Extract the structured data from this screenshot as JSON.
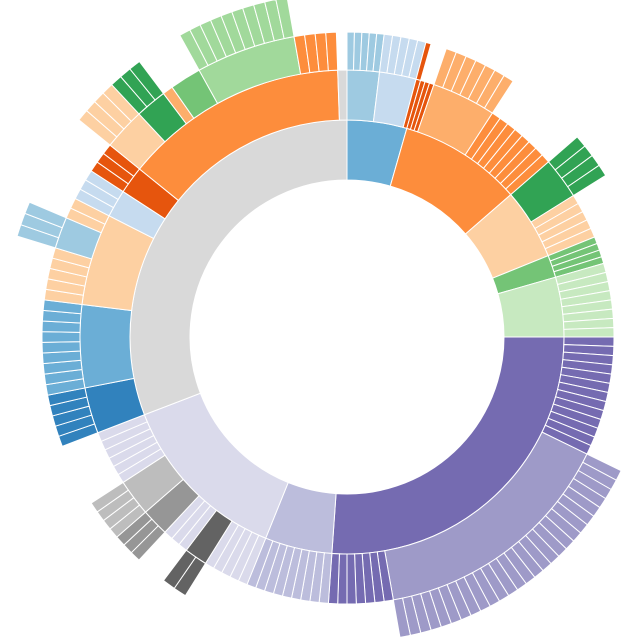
{
  "chart_data": {
    "type": "sunburst",
    "children": [
      {
        "color": "#6baed6",
        "children": [
          {
            "color": "#9ecae1",
            "children": [
              {
                "color": "#9ecae1",
                "value": 1.4
              },
              {
                "color": "#9ecae1",
                "value": 1.4
              },
              {
                "color": "#9ecae1",
                "value": 1.4
              },
              {
                "color": "#9ecae1",
                "value": 1.4
              },
              {
                "color": "#9ecae1",
                "value": 1.4
              }
            ]
          },
          {
            "color": "#c6dbef",
            "children": [
              {
                "color": "#c6dbef",
                "value": 1.6
              },
              {
                "color": "#c6dbef",
                "value": 1.6
              },
              {
                "color": "#c6dbef",
                "value": 1.6
              },
              {
                "color": "#c6dbef",
                "value": 1.6
              },
              {
                "color": "#c6dbef",
                "value": 1.6
              }
            ]
          },
          {
            "color": "#e6550d",
            "children": [
              {
                "color": "#e6550d",
                "value": 1
              }
            ]
          }
        ]
      },
      {
        "color": "#fd8d3c",
        "children": [
          {
            "color": "#e6550d",
            "value": 1
          },
          {
            "color": "#e6550d",
            "value": 1
          },
          {
            "color": "#e6550d",
            "value": 1
          },
          {
            "color": "#fdae6b",
            "children": [
              {
                "color": "#fdae6b",
                "value": 2
              },
              {
                "color": "#fdae6b",
                "value": 2
              },
              {
                "color": "#fdae6b",
                "value": 2
              },
              {
                "color": "#fdae6b",
                "value": 2
              },
              {
                "color": "#fdae6b",
                "value": 2
              },
              {
                "color": "#fdae6b",
                "value": 2
              },
              {
                "color": "#fdae6b",
                "value": 2
              }
            ]
          },
          {
            "color": "#fd8d3c",
            "value": 2
          },
          {
            "color": "#fd8d3c",
            "value": 2
          },
          {
            "color": "#fd8d3c",
            "value": 2
          },
          {
            "color": "#fd8d3c",
            "value": 2
          },
          {
            "color": "#fd8d3c",
            "value": 2
          },
          {
            "color": "#fd8d3c",
            "value": 2
          },
          {
            "color": "#fd8d3c",
            "value": 2
          },
          {
            "color": "#fd8d3c",
            "value": 2
          }
        ]
      },
      {
        "color": "#fdd0a2",
        "children": [
          {
            "color": "#31a354",
            "children": [
              {
                "color": "#31a354",
                "value": 2.25
              },
              {
                "color": "#31a354",
                "value": 2.25
              },
              {
                "color": "#31a354",
                "value": 2.25
              },
              {
                "color": "#31a354",
                "value": 2.25
              }
            ]
          },
          {
            "color": "#fdd0a2",
            "value": 2
          },
          {
            "color": "#fdd0a2",
            "value": 2
          },
          {
            "color": "#fdd0a2",
            "value": 2
          },
          {
            "color": "#fdd0a2",
            "value": 2
          },
          {
            "color": "#fdd0a2",
            "value": 2
          }
        ]
      },
      {
        "color": "#74c476",
        "children": [
          {
            "color": "#74c476",
            "value": 1.5
          },
          {
            "color": "#74c476",
            "value": 1.5
          },
          {
            "color": "#74c476",
            "value": 1.5
          },
          {
            "color": "#74c476",
            "value": 1.5
          }
        ]
      },
      {
        "color": "#c7e9c0",
        "children": [
          {
            "color": "#c7e9c0",
            "value": 2
          },
          {
            "color": "#c7e9c0",
            "value": 2
          },
          {
            "color": "#c7e9c0",
            "value": 2
          },
          {
            "color": "#c7e9c0",
            "value": 2
          },
          {
            "color": "#c7e9c0",
            "value": 2
          },
          {
            "color": "#c7e9c0",
            "value": 2
          },
          {
            "color": "#c7e9c0",
            "value": 2
          },
          {
            "color": "#c7e9c0",
            "value": 2
          }
        ]
      },
      {
        "color": "#756bb1",
        "children": [
          {
            "color": "#756bb1",
            "value": 2
          },
          {
            "color": "#756bb1",
            "value": 2
          },
          {
            "color": "#756bb1",
            "value": 2
          },
          {
            "color": "#756bb1",
            "value": 2
          },
          {
            "color": "#756bb1",
            "value": 2
          },
          {
            "color": "#756bb1",
            "value": 2
          },
          {
            "color": "#756bb1",
            "value": 2
          },
          {
            "color": "#756bb1",
            "value": 2
          },
          {
            "color": "#756bb1",
            "value": 2
          },
          {
            "color": "#756bb1",
            "value": 2
          },
          {
            "color": "#756bb1",
            "value": 2
          },
          {
            "color": "#756bb1",
            "value": 2
          },
          {
            "color": "#756bb1",
            "value": 2
          },
          {
            "color": "#9e9ac8",
            "children": [
              {
                "color": "#9e9ac8",
                "value": 2
              },
              {
                "color": "#9e9ac8",
                "value": 2
              },
              {
                "color": "#9e9ac8",
                "value": 2
              },
              {
                "color": "#9e9ac8",
                "value": 2
              },
              {
                "color": "#9e9ac8",
                "value": 2
              },
              {
                "color": "#9e9ac8",
                "value": 2
              },
              {
                "color": "#9e9ac8",
                "value": 2
              },
              {
                "color": "#9e9ac8",
                "value": 2
              },
              {
                "color": "#9e9ac8",
                "value": 2
              },
              {
                "color": "#9e9ac8",
                "value": 2
              },
              {
                "color": "#9e9ac8",
                "value": 2
              },
              {
                "color": "#9e9ac8",
                "value": 2
              },
              {
                "color": "#9e9ac8",
                "value": 2
              },
              {
                "color": "#9e9ac8",
                "value": 2
              },
              {
                "color": "#9e9ac8",
                "value": 2
              },
              {
                "color": "#9e9ac8",
                "value": 2
              },
              {
                "color": "#9e9ac8",
                "value": 2
              },
              {
                "color": "#9e9ac8",
                "value": 2
              },
              {
                "color": "#9e9ac8",
                "value": 2
              },
              {
                "color": "#9e9ac8",
                "value": 2
              },
              {
                "color": "#9e9ac8",
                "value": 2
              },
              {
                "color": "#9e9ac8",
                "value": 2
              },
              {
                "color": "#9e9ac8",
                "value": 2
              },
              {
                "color": "#9e9ac8",
                "value": 2
              },
              {
                "color": "#9e9ac8",
                "value": 2
              },
              {
                "color": "#9e9ac8",
                "value": 2
              },
              {
                "color": "#9e9ac8",
                "value": 2
              }
            ]
          },
          {
            "color": "#756bb1",
            "value": 2
          },
          {
            "color": "#756bb1",
            "value": 2
          },
          {
            "color": "#756bb1",
            "value": 2
          },
          {
            "color": "#756bb1",
            "value": 2
          },
          {
            "color": "#756bb1",
            "value": 2
          },
          {
            "color": "#756bb1",
            "value": 2
          },
          {
            "color": "#756bb1",
            "value": 2
          }
        ]
      },
      {
        "color": "#bcbddc",
        "children": [
          {
            "color": "#bcbddc",
            "value": 2
          },
          {
            "color": "#bcbddc",
            "value": 2
          },
          {
            "color": "#bcbddc",
            "value": 2
          },
          {
            "color": "#bcbddc",
            "value": 2
          },
          {
            "color": "#bcbddc",
            "value": 2
          },
          {
            "color": "#bcbddc",
            "value": 2
          },
          {
            "color": "#bcbddc",
            "value": 2
          },
          {
            "color": "#bcbddc",
            "value": 2
          },
          {
            "color": "#bcbddc",
            "value": 2
          }
        ]
      },
      {
        "color": "#dadaeb",
        "children": [
          {
            "color": "#dadaeb",
            "value": 2
          },
          {
            "color": "#dadaeb",
            "value": 2
          },
          {
            "color": "#dadaeb",
            "value": 2
          },
          {
            "color": "#dadaeb",
            "value": 2
          },
          {
            "color": "#dadaeb",
            "value": 2
          },
          {
            "color": "#636363",
            "children": [
              {
                "color": "#636363",
                "value": 2.5
              },
              {
                "color": "#636363",
                "value": 2.5
              }
            ]
          },
          {
            "color": "#dadaeb",
            "value": 2
          },
          {
            "color": "#dadaeb",
            "value": 2
          },
          {
            "color": "#dadaeb",
            "value": 2
          },
          {
            "color": "#969696",
            "children": [
              {
                "color": "#969696",
                "value": 2
              },
              {
                "color": "#969696",
                "value": 2
              },
              {
                "color": "#969696",
                "value": 2
              }
            ]
          },
          {
            "color": "#bdbdbd",
            "children": [
              {
                "color": "#bdbdbd",
                "value": 2
              },
              {
                "color": "#bdbdbd",
                "value": 2
              },
              {
                "color": "#bdbdbd",
                "value": 2
              },
              {
                "color": "#bdbdbd",
                "value": 2
              }
            ]
          },
          {
            "color": "#dadaeb",
            "value": 2
          },
          {
            "color": "#dadaeb",
            "value": 2
          },
          {
            "color": "#dadaeb",
            "value": 2
          },
          {
            "color": "#dadaeb",
            "value": 2
          },
          {
            "color": "#dadaeb",
            "value": 2
          },
          {
            "color": "#dadaeb",
            "value": 2
          }
        ]
      },
      {
        "color": "#d9d9d9",
        "children": [
          {
            "color": "#3182bd",
            "children": [
              {
                "color": "#3182bd",
                "value": 2
              },
              {
                "color": "#3182bd",
                "value": 2
              },
              {
                "color": "#3182bd",
                "value": 2
              },
              {
                "color": "#3182bd",
                "value": 2
              },
              {
                "color": "#3182bd",
                "value": 2
              }
            ]
          },
          {
            "color": "#6baed6",
            "children": [
              {
                "color": "#6baed6",
                "value": 2
              },
              {
                "color": "#6baed6",
                "value": 2
              },
              {
                "color": "#6baed6",
                "value": 2
              },
              {
                "color": "#6baed6",
                "value": 2
              },
              {
                "color": "#6baed6",
                "value": 2
              },
              {
                "color": "#6baed6",
                "value": 2
              },
              {
                "color": "#6baed6",
                "value": 2
              },
              {
                "color": "#6baed6",
                "value": 2
              },
              {
                "color": "#6baed6",
                "value": 2
              }
            ]
          },
          {
            "color": "#fdd0a2",
            "children": [
              {
                "color": "#fdd0a2",
                "value": 2
              },
              {
                "color": "#fdd0a2",
                "value": 2
              },
              {
                "color": "#fdd0a2",
                "value": 2
              },
              {
                "color": "#fdd0a2",
                "value": 2
              },
              {
                "color": "#fdd0a2",
                "value": 2
              },
              {
                "color": "#9ecae1",
                "children": [
                  {
                    "color": "#9ecae1",
                    "value": 2
                  },
                  {
                    "color": "#9ecae1",
                    "value": 2
                  },
                  {
                    "color": "#9ecae1",
                    "value": 2
                  }
                ]
              },
              {
                "color": "#fdd0a2",
                "value": 2
              },
              {
                "color": "#fdd0a2",
                "value": 2
              }
            ]
          },
          {
            "color": "#c6dbef",
            "children": [
              {
                "color": "#c6dbef",
                "value": 2
              },
              {
                "color": "#c6dbef",
                "value": 2
              },
              {
                "color": "#c6dbef",
                "value": 2
              }
            ]
          },
          {
            "color": "#e6550d",
            "children": [
              {
                "color": "#e6550d",
                "value": 2
              },
              {
                "color": "#e6550d",
                "value": 2
              },
              {
                "color": "#e6550d",
                "value": 2
              }
            ]
          },
          {
            "color": "#fd8d3c",
            "children": [
              {
                "color": "#fdd0a2",
                "children": [
                  {
                    "color": "#fdd0a2",
                    "value": 2
                  },
                  {
                    "color": "#fdd0a2",
                    "value": 2
                  },
                  {
                    "color": "#fdd0a2",
                    "value": 2
                  },
                  {
                    "color": "#fdd0a2",
                    "value": 2
                  }
                ]
              },
              {
                "color": "#31a354",
                "children": [
                  {
                    "color": "#31a354",
                    "value": 2
                  },
                  {
                    "color": "#31a354",
                    "value": 2
                  },
                  {
                    "color": "#31a354",
                    "value": 2
                  }
                ]
              },
              {
                "color": "#fdae6b",
                "value": 2
              },
              {
                "color": "#74c476",
                "value": 6
              },
              {
                "color": "#a1d99b",
                "children": [
                  {
                    "color": "#a1d99b",
                    "value": 1.9
                  },
                  {
                    "color": "#a1d99b",
                    "value": 1.9
                  },
                  {
                    "color": "#a1d99b",
                    "value": 1.9
                  },
                  {
                    "color": "#a1d99b",
                    "value": 1.9
                  },
                  {
                    "color": "#a1d99b",
                    "value": 1.9
                  },
                  {
                    "color": "#a1d99b",
                    "value": 1.9
                  },
                  {
                    "color": "#a1d99b",
                    "value": 1.9
                  },
                  {
                    "color": "#a1d99b",
                    "value": 1.9
                  },
                  {
                    "color": "#a1d99b",
                    "value": 1.9
                  },
                  {
                    "color": "#a1d99b",
                    "value": 1.9
                  }
                ]
              },
              {
                "color": "#fd8d3c",
                "value": 2
              },
              {
                "color": "#fd8d3c",
                "value": 2
              },
              {
                "color": "#fd8d3c",
                "value": 2
              },
              {
                "color": "#fd8d3c",
                "value": 2
              }
            ]
          },
          {
            "color": "#d9d9d9",
            "value": 2
          }
        ]
      }
    ]
  }
}
